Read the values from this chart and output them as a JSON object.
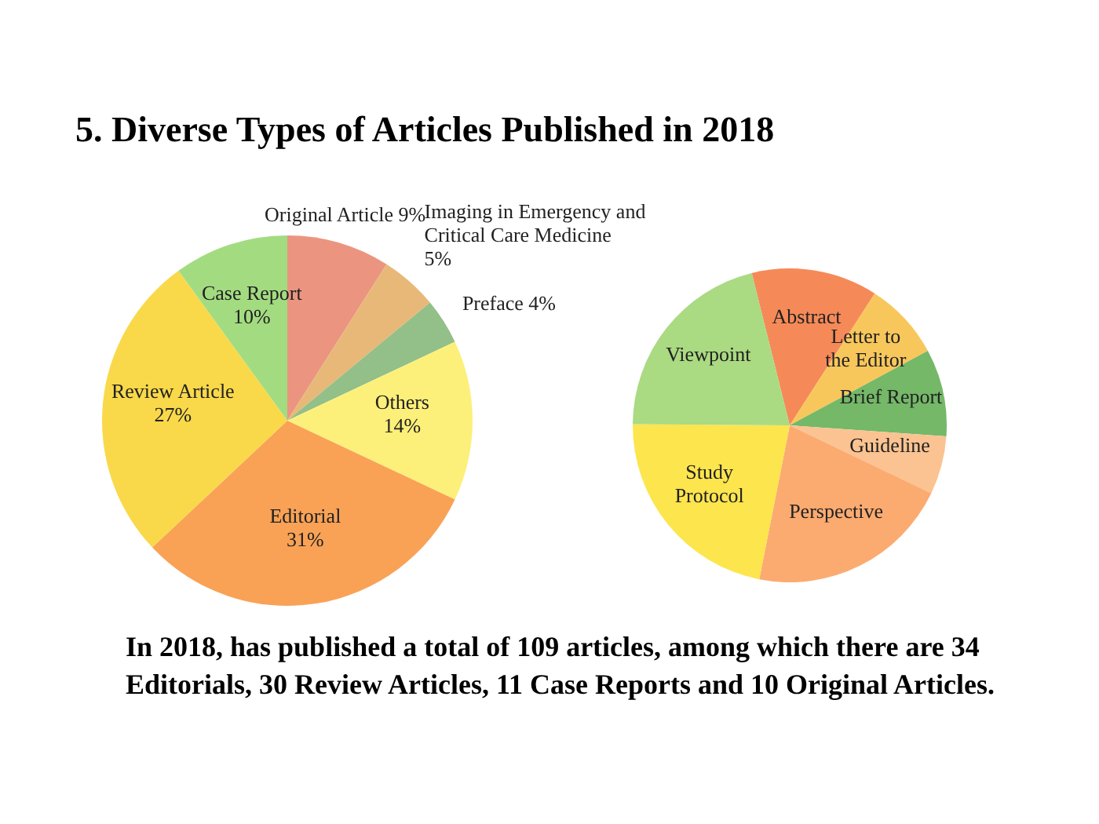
{
  "chart_data": [
    {
      "type": "pie",
      "title": "5. Diverse Types of Articles Published in 2018",
      "categories": [
        "Original Article",
        "Imaging in Emergency and Critical Care Medicine",
        "Preface",
        "Others",
        "Editorial",
        "Review Article",
        "Case Report"
      ],
      "values": [
        9,
        5,
        4,
        14,
        31,
        27,
        10
      ],
      "value_labels": [
        "9%",
        "5%",
        "4%",
        "14%",
        "31%",
        "27%",
        "10%"
      ],
      "colors": [
        "#eb9580",
        "#e8b878",
        "#93bf88",
        "#fdf07a",
        "#f9a256",
        "#f9d94a",
        "#a3dc80"
      ],
      "legend": false,
      "annotations": [
        "In 2018, has published a total of 109 articles, among which there are 34 Editorials, 30 Review Articles, 11 Case Reports and 10 Original Articles."
      ]
    },
    {
      "type": "pie",
      "categories": [
        "Abstract",
        "Letter to the Editor",
        "Brief Report",
        "Guideline",
        "Perspective",
        "Study Protocol",
        "Viewpoint"
      ],
      "values": [
        13,
        8,
        9,
        6,
        21,
        22,
        21
      ],
      "colors": [
        "#f58a58",
        "#f8c75c",
        "#74b868",
        "#fbc391",
        "#fcab70",
        "#fde54e",
        "#aada82"
      ],
      "legend": false
    }
  ]
}
